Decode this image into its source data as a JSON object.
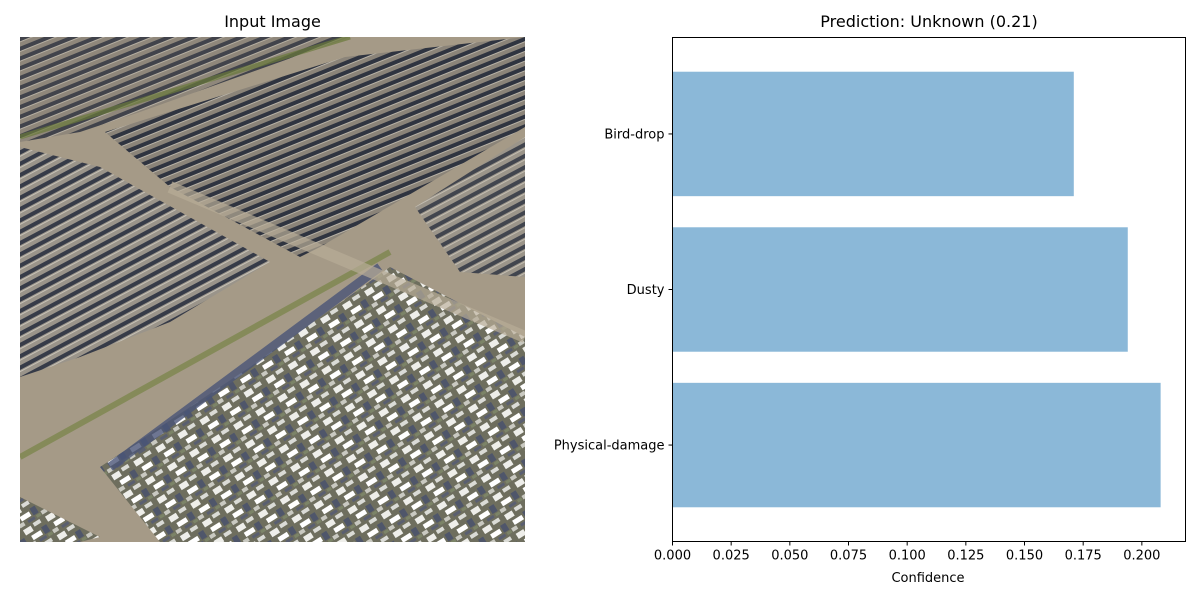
{
  "left_panel": {
    "title": "Input Image"
  },
  "right_panel": {
    "title": "Prediction: Unknown (0.21)"
  },
  "chart_data": {
    "type": "bar",
    "orientation": "horizontal",
    "title": "Prediction: Unknown (0.21)",
    "xlabel": "Confidence",
    "ylabel": "",
    "categories": [
      "Physical-damage",
      "Dusty",
      "Bird-drop"
    ],
    "values": [
      0.208,
      0.194,
      0.171
    ],
    "xlim": [
      0,
      0.2186
    ],
    "xticks": [
      "0.000",
      "0.025",
      "0.050",
      "0.075",
      "0.100",
      "0.125",
      "0.150",
      "0.175",
      "0.200"
    ],
    "bar_color": "#8bb8d8",
    "grid": false,
    "legend": "none"
  }
}
